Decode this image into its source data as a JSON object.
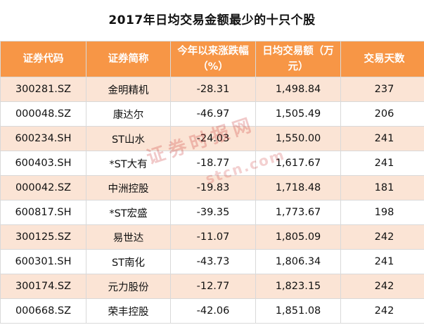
{
  "title": "2017年日均交易金额最少的十只个股",
  "table": {
    "headers": [
      "证券代码",
      "证券简称",
      "今年以来涨跌幅（%）",
      "日均交易额（万元）",
      "交易天数"
    ],
    "rows": [
      [
        "300281.SZ",
        "金明精机",
        "-28.31",
        "1,498.84",
        "237"
      ],
      [
        "000048.SZ",
        "康达尔",
        "-46.97",
        "1,505.49",
        "206"
      ],
      [
        "600234.SH",
        "ST山水",
        "-24.03",
        "1,550.00",
        "241"
      ],
      [
        "600403.SH",
        "*ST大有",
        "-18.77",
        "1,617.67",
        "241"
      ],
      [
        "000042.SZ",
        "中洲控股",
        "-19.83",
        "1,718.48",
        "181"
      ],
      [
        "600817.SH",
        "*ST宏盛",
        "-39.35",
        "1,773.67",
        "198"
      ],
      [
        "300125.SZ",
        "易世达",
        "-11.07",
        "1,805.09",
        "242"
      ],
      [
        "600301.SH",
        "ST南化",
        "-43.73",
        "1,806.34",
        "241"
      ],
      [
        "300174.SZ",
        "元力股份",
        "-12.77",
        "1,823.15",
        "242"
      ],
      [
        "000668.SZ",
        "荣丰控股",
        "-42.06",
        "1,851.08",
        "242"
      ]
    ]
  },
  "watermark": {
    "text": "证券时报网",
    "sub": "stcn.com"
  },
  "colors": {
    "header_bg": "#f79646",
    "row_alt_bg": "#fbe4d5",
    "border": "#d9d9d9"
  }
}
